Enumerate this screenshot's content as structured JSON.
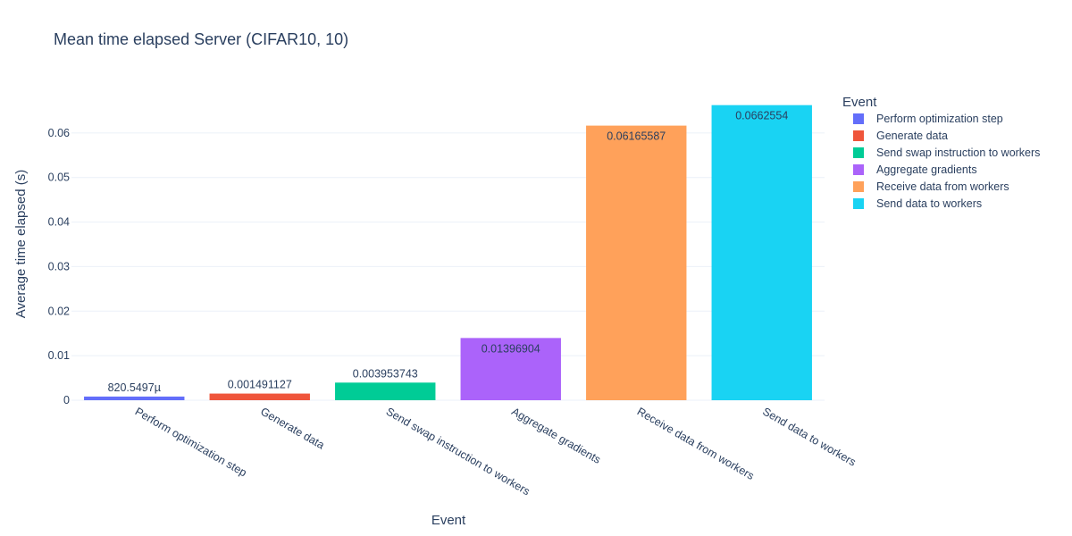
{
  "chart_data": {
    "type": "bar",
    "title": "Mean time elapsed Server (CIFAR10, 10)",
    "xlabel": "Event",
    "ylabel": "Average time elapsed (s)",
    "ylim": [
      0,
      0.0698
    ],
    "yticks": [
      0,
      0.01,
      0.02,
      0.03,
      0.04,
      0.05,
      0.06
    ],
    "ytick_labels": [
      "0",
      "0.01",
      "0.02",
      "0.03",
      "0.04",
      "0.05",
      "0.06"
    ],
    "grid": true,
    "legend_title": "Event",
    "legend_position": "right",
    "categories": [
      "Perform optimization step",
      "Generate data",
      "Send swap instruction to workers",
      "Aggregate gradients",
      "Receive data from workers",
      "Send data to workers"
    ],
    "values": [
      0.0008205497,
      0.001491127,
      0.003953743,
      0.01396904,
      0.06165587,
      0.0662554
    ],
    "data_labels": [
      "820.5497µ",
      "0.001491127",
      "0.003953743",
      "0.01396904",
      "0.06165587",
      "0.0662554"
    ],
    "colors": [
      "#636efa",
      "#ef553b",
      "#00cc96",
      "#ab63fa",
      "#ffa15a",
      "#19d3f3"
    ]
  }
}
